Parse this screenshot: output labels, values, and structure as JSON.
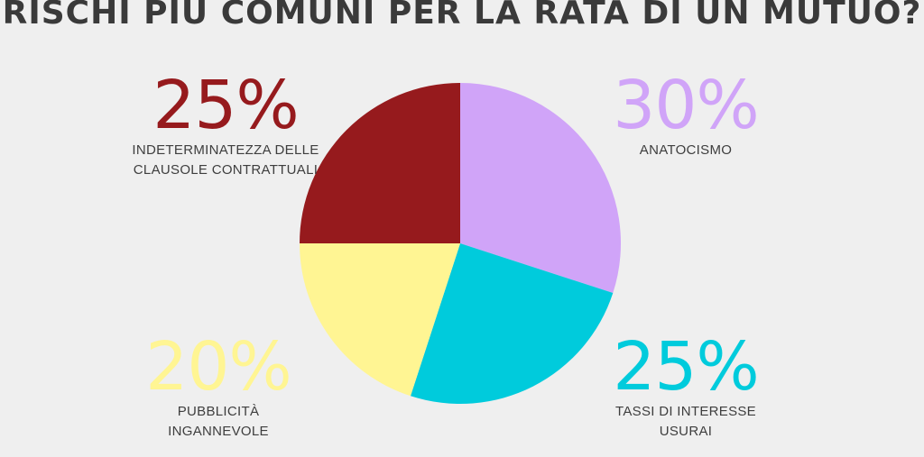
{
  "chart_data": {
    "type": "pie",
    "title": "RISCHI PIÙ COMUNI PER LA RATA DI UN MUTUO?",
    "slices": [
      {
        "label": "ANATOCISMO",
        "percent_text": "30%",
        "value": 30,
        "color": "#d0a4f8"
      },
      {
        "label": "TASSI DI INTERESSE\nUSURAI",
        "percent_text": "25%",
        "value": 25,
        "color": "#00cbdc"
      },
      {
        "label": "PUBBLICITÀ\nINGANNEVOLE",
        "percent_text": "20%",
        "value": 20,
        "color": "#fff593"
      },
      {
        "label": "INDETERMINATEZZA DELLE\nCLAUSOLE CONTRATTUALI",
        "percent_text": "25%",
        "value": 25,
        "color": "#961a1d"
      }
    ]
  }
}
